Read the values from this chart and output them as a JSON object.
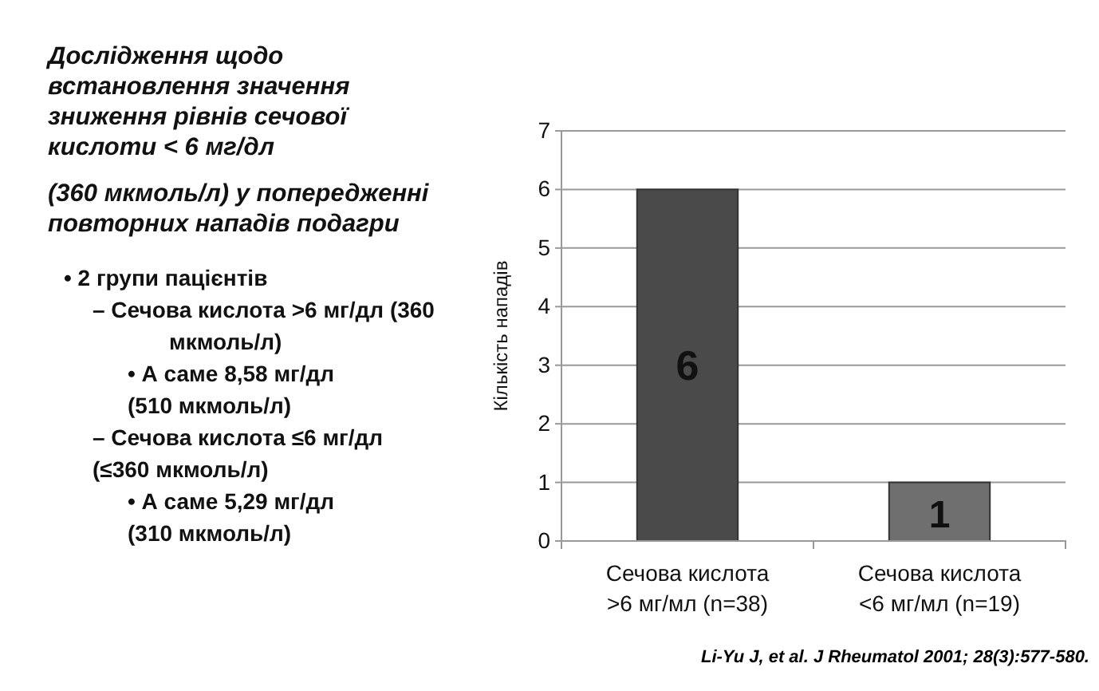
{
  "chart_data": {
    "type": "bar",
    "title": "Дослідження щодо встановлення значення зниження рівнів сечової кислоти < 6 мг/дл",
    "subtitle": "(360 мкмоль/л) у попередженні повторних нападів подагри",
    "annotations": [
      "• 2 групи пацієнтів",
      "– Сечова кислота >6 мг/дл (360 мкмоль/л)",
      "• А саме 8,58 мг/дл (510 мкмоль/л)",
      "– Сечова кислота ≤6 мг/дл (≤360 мкмоль/л)",
      "• А саме 5,29 мг/дл (310 мкмоль/л)",
      "Li-Yu J, et al. J Rheumatol 2001; 28(3):577-580."
    ],
    "ylabel": "Кількість нападів",
    "categories": [
      "Сечова кислота >6 мг/мл (n=38)",
      "Сечова кислота <6 мг/мл (n=19)"
    ],
    "values": [
      6,
      1
    ],
    "colors": [
      "#4a4a4a",
      "#6f6f6f"
    ],
    "ylim": [
      0,
      7
    ],
    "yticks": [
      0,
      1,
      2,
      3,
      4,
      5,
      6,
      7
    ],
    "grid": "y",
    "data_labels": true
  }
}
